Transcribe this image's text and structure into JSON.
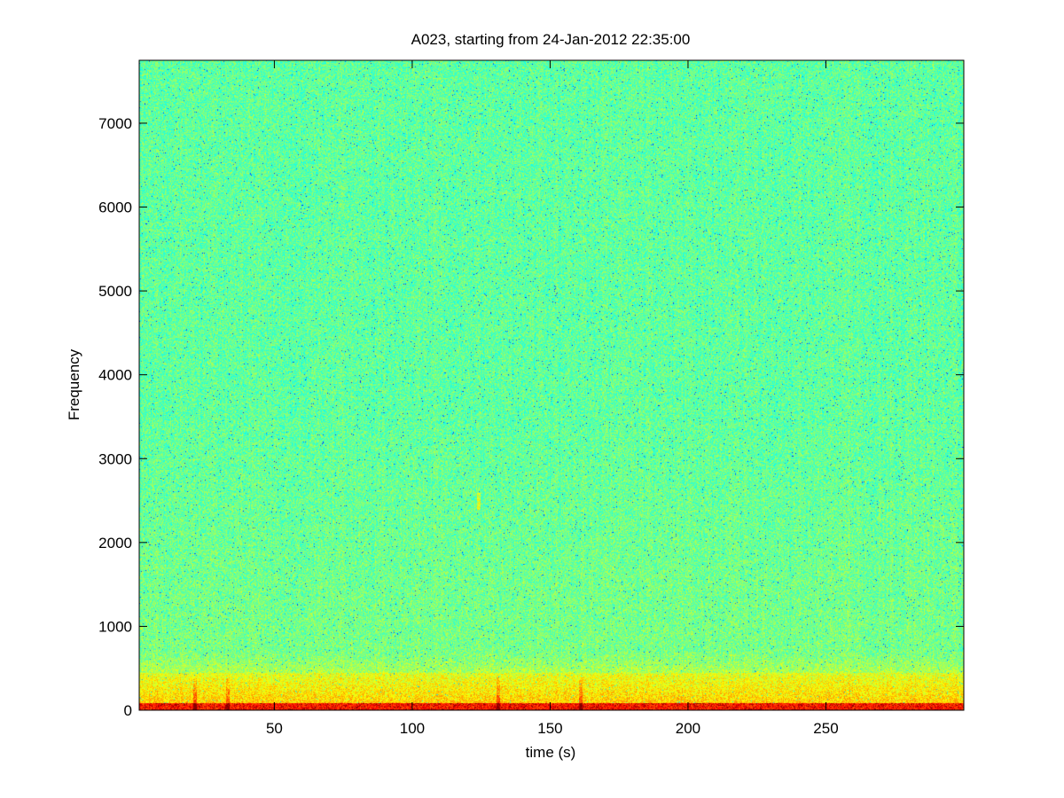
{
  "chart_data": {
    "type": "heatmap",
    "title": "A023, starting from 24-Jan-2012 22:35:00",
    "xlabel": "time (s)",
    "ylabel": "Frequency",
    "xlim": [
      1,
      300
    ],
    "ylim": [
      0,
      7750
    ],
    "xticks": [
      50,
      100,
      150,
      200,
      250
    ],
    "xtick_labels": [
      "50",
      "100",
      "150",
      "200",
      "250"
    ],
    "yticks": [
      0,
      1000,
      2000,
      3000,
      4000,
      5000,
      6000,
      7000
    ],
    "ytick_labels": [
      "0",
      "1000",
      "2000",
      "3000",
      "4000",
      "5000",
      "6000",
      "7000"
    ],
    "grid": false,
    "colormap": "jet",
    "colors": {
      "background_noise": "#30e0b0",
      "low_band": "#f0f020",
      "peak": "#b01010"
    },
    "bands": [
      {
        "freq_range": [
          0,
          100
        ],
        "level": "high"
      },
      {
        "freq_range": [
          100,
          700
        ],
        "level": "elevated"
      },
      {
        "freq_range": [
          700,
          7750
        ],
        "level": "background"
      }
    ],
    "transients": [
      {
        "time": 21,
        "freq_max": 400
      },
      {
        "time": 33,
        "freq_max": 400
      },
      {
        "time": 124,
        "freq_range": [
          2400,
          2600
        ]
      },
      {
        "time": 131,
        "freq_max": 400
      },
      {
        "time": 161,
        "freq_max": 400
      }
    ]
  }
}
